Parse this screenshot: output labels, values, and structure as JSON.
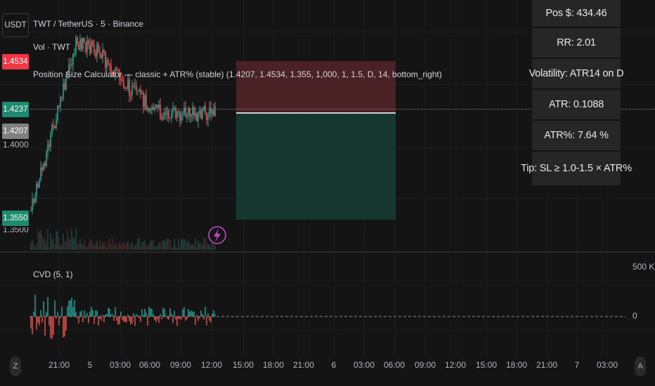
{
  "currency_button": "USDT",
  "legend": {
    "symbol": "TWT / TetherUS · 5 · Binance",
    "volume": "Vol · TWT",
    "indicator": "Position Size Calculator — classic + ATR% (stable) (1.4207, 1.4534, 1.355, 1,000, 1, 1.5, D, 14, bottom_right)"
  },
  "price_tags": {
    "stop": "1.4534",
    "current": "1.4237",
    "entry": "1.4207",
    "partial": "1.4000",
    "target": "1.3550",
    "bottom_cut": "1.3500"
  },
  "info_table": [
    "Pos $:   434.46",
    "RR:     2.01",
    "Volatility: ATR14 on D",
    "ATR:     0.1088",
    "ATR%:    7.64 %",
    "Tip: SL ≥ 1.0-1.5 × ATR%"
  ],
  "cvd": {
    "label": "CVD (5, 1)",
    "axis_top": "500 K",
    "axis_zero": "0"
  },
  "time_axis": [
    "21:00",
    "5",
    "03:00",
    "06:00",
    "09:00",
    "12:00",
    "15:00",
    "18:00",
    "21:00",
    "6",
    "03:00",
    "06:00",
    "09:00",
    "12:00",
    "15:00",
    "18:00",
    "21:00",
    "7",
    "03:00"
  ],
  "nav": {
    "left": "Z",
    "right": "A"
  },
  "colors": {
    "background": "#141414",
    "up": "#26a69a",
    "down": "#ef5350",
    "stop_zone": "#4a2124",
    "target_zone": "#163630",
    "dotted_line": "#26a69a",
    "bolt": "#c447c4"
  }
}
